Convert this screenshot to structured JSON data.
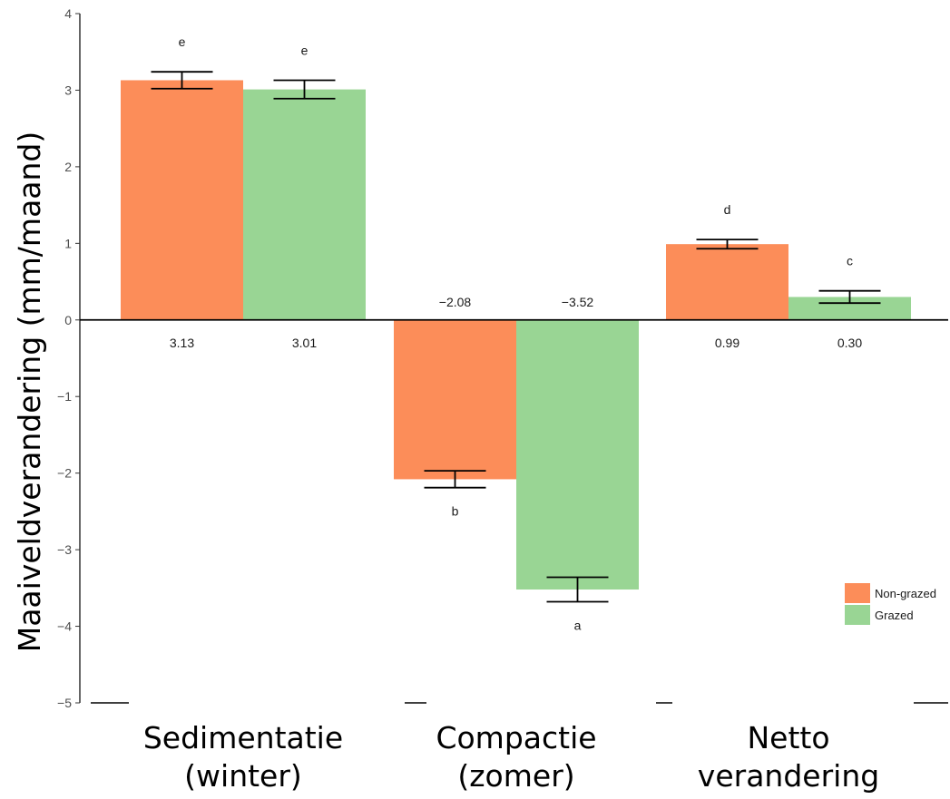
{
  "chart_data": {
    "type": "bar",
    "ylabel": "Maaiveldverandering (mm/maand)",
    "ylim": [
      -5,
      4
    ],
    "yticks": [
      -5,
      -4,
      -3,
      -2,
      -1,
      0,
      1,
      2,
      3,
      4
    ],
    "categories": [
      [
        "Sedimentatie",
        "(winter)"
      ],
      [
        "Compactie",
        "(zomer)"
      ],
      [
        "Netto",
        "verandering"
      ]
    ],
    "series": [
      {
        "name": "Non-grazed",
        "color": "#FC8D59",
        "values": [
          3.13,
          -2.08,
          0.99
        ],
        "errors": [
          0.11,
          0.11,
          0.06
        ],
        "value_labels": [
          "3.13",
          "−2.08",
          "0.99"
        ],
        "letters": [
          "e",
          "b",
          "d"
        ]
      },
      {
        "name": "Grazed",
        "color": "#99D594",
        "values": [
          3.01,
          -3.52,
          0.3
        ],
        "errors": [
          0.12,
          0.16,
          0.08
        ],
        "value_labels": [
          "3.01",
          "−3.52",
          "0.30"
        ],
        "letters": [
          "e",
          "a",
          "c"
        ]
      }
    ],
    "legend_position": "bottom-right",
    "grid": false
  }
}
